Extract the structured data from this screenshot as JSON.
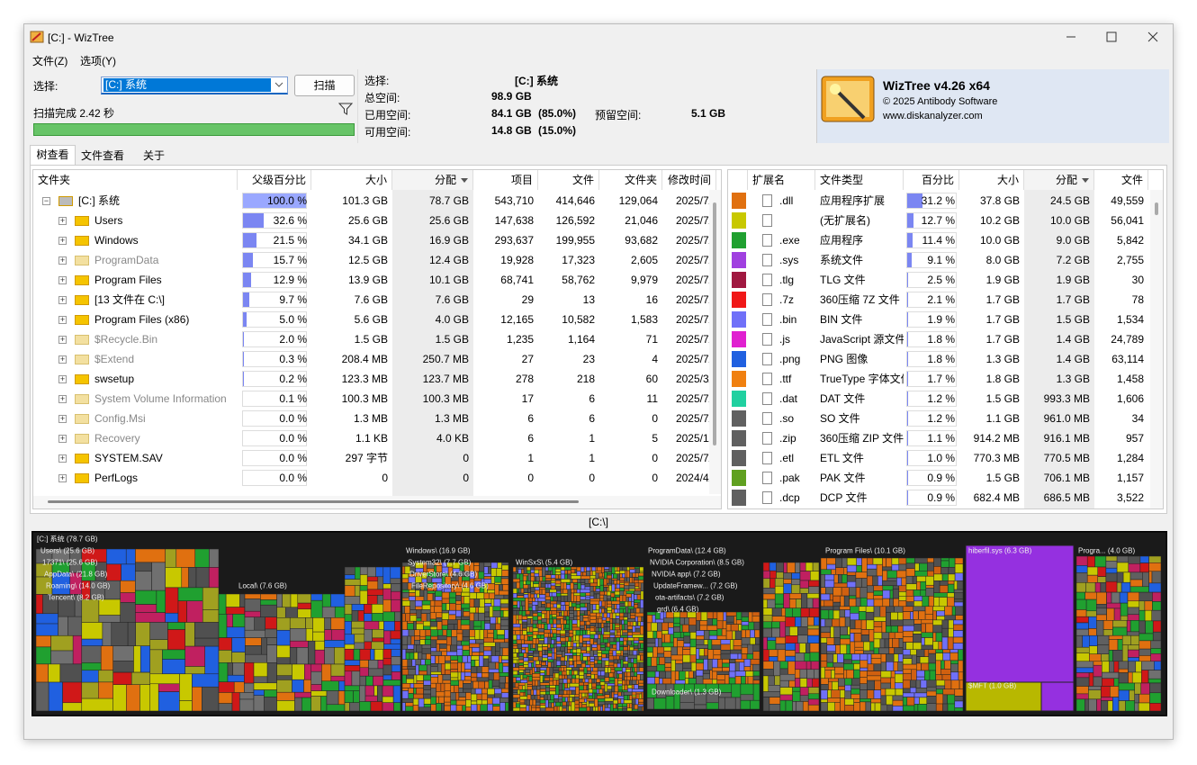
{
  "window": {
    "title": "[C:]  - WizTree"
  },
  "menu": [
    "文件(Z)",
    "选项(Y)"
  ],
  "toolbar": {
    "select_label": "选择:",
    "drive": "[C:] 系统",
    "scan_button": "扫描",
    "status": "扫描完成 2.42 秒"
  },
  "info": {
    "selected_label": "选择:",
    "selected": "[C:]  系统",
    "total_label": "总空间:",
    "total": "98.9 GB",
    "used_label": "已用空间:",
    "used": "84.1 GB",
    "used_pct": "(85.0%)",
    "reserved_label": "预留空间:",
    "reserved": "5.1 GB",
    "free_label": "可用空间:",
    "free": "14.8 GB",
    "free_pct": "(15.0%)"
  },
  "about": {
    "product": "WizTree v4.26 x64",
    "copyright": "© 2025 Antibody Software",
    "url": "www.diskanalyzer.com"
  },
  "tabs": [
    "树查看",
    "文件查看",
    "关于"
  ],
  "folder_table": {
    "columns": [
      "文件夹",
      "父级百分比",
      "大小",
      "分配",
      "项目",
      "文件",
      "文件夹",
      "修改时间"
    ],
    "rows": [
      {
        "name": "[C:] 系统",
        "pct": 100.0,
        "pct_label": "100.0 %",
        "size": "101.3 GB",
        "alloc": "78.7 GB",
        "items": "543,710",
        "files": "414,646",
        "folders": "129,064",
        "modified": "2025/7/",
        "dim": false
      },
      {
        "name": "Users",
        "pct": 32.6,
        "pct_label": "32.6 %",
        "size": "25.6 GB",
        "alloc": "25.6 GB",
        "items": "147,638",
        "files": "126,592",
        "folders": "21,046",
        "modified": "2025/7/",
        "dim": false
      },
      {
        "name": "Windows",
        "pct": 21.5,
        "pct_label": "21.5 %",
        "size": "34.1 GB",
        "alloc": "16.9 GB",
        "items": "293,637",
        "files": "199,955",
        "folders": "93,682",
        "modified": "2025/7/",
        "dim": false
      },
      {
        "name": "ProgramData",
        "pct": 15.7,
        "pct_label": "15.7 %",
        "size": "12.5 GB",
        "alloc": "12.4 GB",
        "items": "19,928",
        "files": "17,323",
        "folders": "2,605",
        "modified": "2025/7/",
        "dim": true
      },
      {
        "name": "Program Files",
        "pct": 12.9,
        "pct_label": "12.9 %",
        "size": "13.9 GB",
        "alloc": "10.1 GB",
        "items": "68,741",
        "files": "58,762",
        "folders": "9,979",
        "modified": "2025/7/",
        "dim": false
      },
      {
        "name": "[13 文件在 C:\\]",
        "pct": 9.7,
        "pct_label": "9.7 %",
        "size": "7.6 GB",
        "alloc": "7.6 GB",
        "items": "29",
        "files": "13",
        "folders": "16",
        "modified": "2025/7/",
        "dim": false
      },
      {
        "name": "Program Files (x86)",
        "pct": 5.0,
        "pct_label": "5.0 %",
        "size": "5.6 GB",
        "alloc": "4.0 GB",
        "items": "12,165",
        "files": "10,582",
        "folders": "1,583",
        "modified": "2025/7/",
        "dim": false
      },
      {
        "name": "$Recycle.Bin",
        "pct": 2.0,
        "pct_label": "2.0 %",
        "size": "1.5 GB",
        "alloc": "1.5 GB",
        "items": "1,235",
        "files": "1,164",
        "folders": "71",
        "modified": "2025/7/",
        "dim": true
      },
      {
        "name": "$Extend",
        "pct": 0.3,
        "pct_label": "0.3 %",
        "size": "208.4 MB",
        "alloc": "250.7 MB",
        "items": "27",
        "files": "23",
        "folders": "4",
        "modified": "2025/7/",
        "dim": true
      },
      {
        "name": "swsetup",
        "pct": 0.2,
        "pct_label": "0.2 %",
        "size": "123.3 MB",
        "alloc": "123.7 MB",
        "items": "278",
        "files": "218",
        "folders": "60",
        "modified": "2025/3/",
        "dim": false
      },
      {
        "name": "System Volume Information",
        "pct": 0.1,
        "pct_label": "0.1 %",
        "size": "100.3 MB",
        "alloc": "100.3 MB",
        "items": "17",
        "files": "6",
        "folders": "11",
        "modified": "2025/7/",
        "dim": true
      },
      {
        "name": "Config.Msi",
        "pct": 0.0,
        "pct_label": "0.0 %",
        "size": "1.3 MB",
        "alloc": "1.3 MB",
        "items": "6",
        "files": "6",
        "folders": "0",
        "modified": "2025/7/",
        "dim": true
      },
      {
        "name": "Recovery",
        "pct": 0.0,
        "pct_label": "0.0 %",
        "size": "1.1 KB",
        "alloc": "4.0 KB",
        "items": "6",
        "files": "1",
        "folders": "5",
        "modified": "2025/1/",
        "dim": true
      },
      {
        "name": "SYSTEM.SAV",
        "pct": 0.0,
        "pct_label": "0.0 %",
        "size": "297 字节",
        "alloc": "0",
        "items": "1",
        "files": "1",
        "folders": "0",
        "modified": "2025/7/",
        "dim": false
      },
      {
        "name": "PerfLogs",
        "pct": 0.0,
        "pct_label": "0.0 %",
        "size": "0",
        "alloc": "0",
        "items": "0",
        "files": "0",
        "folders": "0",
        "modified": "2024/4/",
        "dim": false
      }
    ]
  },
  "ext_table": {
    "columns": [
      "扩展名",
      "文件类型",
      "百分比",
      "大小",
      "分配",
      "文件"
    ],
    "rows": [
      {
        "color": "#e07010",
        "ext": ".dll",
        "type": "应用程序扩展",
        "pct": 31.2,
        "pct_label": "31.2 %",
        "size": "37.8 GB",
        "alloc": "24.5 GB",
        "files": "49,559"
      },
      {
        "color": "#c8c800",
        "ext": "",
        "type": "(无扩展名)",
        "pct": 12.7,
        "pct_label": "12.7 %",
        "size": "10.2 GB",
        "alloc": "10.0 GB",
        "files": "56,041"
      },
      {
        "color": "#20a030",
        "ext": ".exe",
        "type": "应用程序",
        "pct": 11.4,
        "pct_label": "11.4 %",
        "size": "10.0 GB",
        "alloc": "9.0 GB",
        "files": "5,842"
      },
      {
        "color": "#a040e0",
        "ext": ".sys",
        "type": "系统文件",
        "pct": 9.1,
        "pct_label": "9.1 %",
        "size": "8.0 GB",
        "alloc": "7.2 GB",
        "files": "2,755"
      },
      {
        "color": "#a01840",
        "ext": ".tlg",
        "type": "TLG 文件",
        "pct": 2.5,
        "pct_label": "2.5 %",
        "size": "1.9 GB",
        "alloc": "1.9 GB",
        "files": "30"
      },
      {
        "color": "#f01818",
        "ext": ".7z",
        "type": "360压缩 7Z 文件",
        "pct": 2.1,
        "pct_label": "2.1 %",
        "size": "1.7 GB",
        "alloc": "1.7 GB",
        "files": "78"
      },
      {
        "color": "#7070f8",
        "ext": ".bin",
        "type": "BIN 文件",
        "pct": 1.9,
        "pct_label": "1.9 %",
        "size": "1.7 GB",
        "alloc": "1.5 GB",
        "files": "1,534"
      },
      {
        "color": "#e020d0",
        "ext": ".js",
        "type": "JavaScript 源文件",
        "pct": 1.8,
        "pct_label": "1.8 %",
        "size": "1.7 GB",
        "alloc": "1.4 GB",
        "files": "24,789"
      },
      {
        "color": "#2060e0",
        "ext": ".png",
        "type": "PNG 图像",
        "pct": 1.8,
        "pct_label": "1.8 %",
        "size": "1.3 GB",
        "alloc": "1.4 GB",
        "files": "63,114"
      },
      {
        "color": "#f08010",
        "ext": ".ttf",
        "type": "TrueType 字体文件",
        "pct": 1.7,
        "pct_label": "1.7 %",
        "size": "1.8 GB",
        "alloc": "1.3 GB",
        "files": "1,458"
      },
      {
        "color": "#20d0a0",
        "ext": ".dat",
        "type": "DAT 文件",
        "pct": 1.2,
        "pct_label": "1.2 %",
        "size": "1.5 GB",
        "alloc": "993.3 MB",
        "files": "1,606"
      },
      {
        "color": "#606060",
        "ext": ".so",
        "type": "SO 文件",
        "pct": 1.2,
        "pct_label": "1.2 %",
        "size": "1.1 GB",
        "alloc": "961.0 MB",
        "files": "34"
      },
      {
        "color": "#606060",
        "ext": ".zip",
        "type": "360压缩 ZIP 文件",
        "pct": 1.1,
        "pct_label": "1.1 %",
        "size": "914.2 MB",
        "alloc": "916.1 MB",
        "files": "957"
      },
      {
        "color": "#606060",
        "ext": ".etl",
        "type": "ETL 文件",
        "pct": 1.0,
        "pct_label": "1.0 %",
        "size": "770.3 MB",
        "alloc": "770.5 MB",
        "files": "1,284"
      },
      {
        "color": "#60a020",
        "ext": ".pak",
        "type": "PAK 文件",
        "pct": 0.9,
        "pct_label": "0.9 %",
        "size": "1.5 GB",
        "alloc": "706.1 MB",
        "files": "1,157"
      },
      {
        "color": "#606060",
        "ext": ".dcp",
        "type": "DCP 文件",
        "pct": 0.9,
        "pct_label": "0.9 %",
        "size": "682.4 MB",
        "alloc": "686.5 MB",
        "files": "3,522"
      }
    ]
  },
  "treemap": {
    "path": "[C:\\]",
    "labels": [
      "[C:] 系统  (78.7 GB)",
      "Users\\ (25.6 GB)",
      "17371\\ (25.6 GB)",
      "AppData\\ (21.8 GB)",
      "Roaming\\ (14.0 GB)",
      "Tencent\\ (8.2 GB)",
      "Local\\ (7.6 GB)",
      "Windows\\ (16.9 GB)",
      "System32\\ (7.7 GB)",
      "DriverStore\\ (4.6 GB)",
      "FileRepository\\ (4.6 GB)",
      "WinSxS\\ (5.4 GB)",
      "ProgramData\\ (12.4 GB)",
      "NVIDIA Corporation\\ (8.5 GB)",
      "NVIDIA app\\ (7.2 GB)",
      "UpdateFramew... (7.2 GB)",
      "ota-artifacts\\ (7.2 GB)",
      "grd\\ (6.4 GB)",
      "Downloader\\ (1.3 GB)",
      "Program Files\\ (10.1 GB)",
      "hiberfil.sys (6.3 GB)",
      "$MFT (1.0 GB)",
      "Progra... (4.0 GB)"
    ]
  }
}
